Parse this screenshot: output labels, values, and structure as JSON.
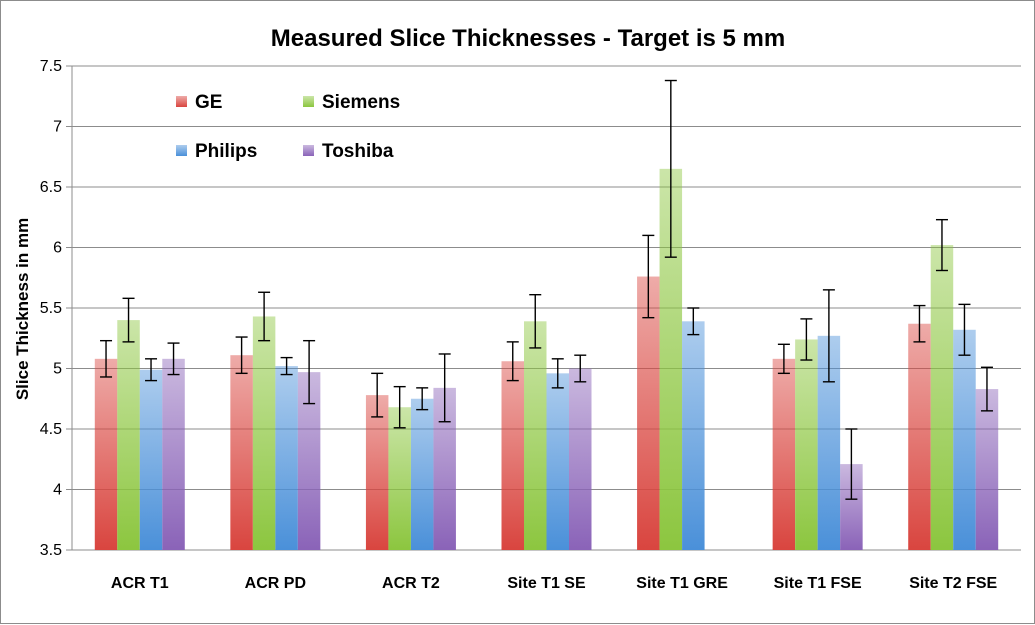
{
  "chart_data": {
    "type": "bar",
    "title": "Measured Slice Thicknesses - Target is 5 mm",
    "xlabel": "",
    "ylabel": "Slice Thickness in mm",
    "ylim": [
      3.5,
      7.5
    ],
    "yticks": [
      "3.5",
      "4",
      "4.5",
      "5",
      "5.5",
      "6",
      "6.5",
      "7",
      "7.5"
    ],
    "grid": true,
    "legend_position": "top-left",
    "categories": [
      "ACR T1",
      "ACR PD",
      "ACR T2",
      "Site T1 SE",
      "Site T1 GRE",
      "Site T1 FSE",
      "Site T2 FSE"
    ],
    "series": [
      {
        "name": "GE",
        "color": "#d9453f",
        "values": [
          5.08,
          5.11,
          4.78,
          5.06,
          5.76,
          5.08,
          5.37
        ],
        "errors": [
          0.15,
          0.15,
          0.18,
          0.16,
          0.34,
          0.12,
          0.15
        ]
      },
      {
        "name": "Siemens",
        "color": "#8cc63f",
        "values": [
          5.4,
          5.43,
          4.68,
          5.39,
          6.65,
          5.24,
          6.02
        ],
        "errors": [
          0.18,
          0.2,
          0.17,
          0.22,
          0.73,
          0.17,
          0.21
        ]
      },
      {
        "name": "Philips",
        "color": "#4a90d9",
        "values": [
          4.99,
          5.02,
          4.75,
          4.96,
          5.39,
          5.27,
          5.32
        ],
        "errors": [
          0.09,
          0.07,
          0.09,
          0.12,
          0.11,
          0.38,
          0.21
        ]
      },
      {
        "name": "Toshiba",
        "color": "#8a63b8",
        "values": [
          5.08,
          4.97,
          4.84,
          5.0,
          null,
          4.21,
          4.83
        ],
        "errors": [
          0.13,
          0.26,
          0.28,
          0.11,
          null,
          0.29,
          0.18
        ]
      }
    ]
  }
}
